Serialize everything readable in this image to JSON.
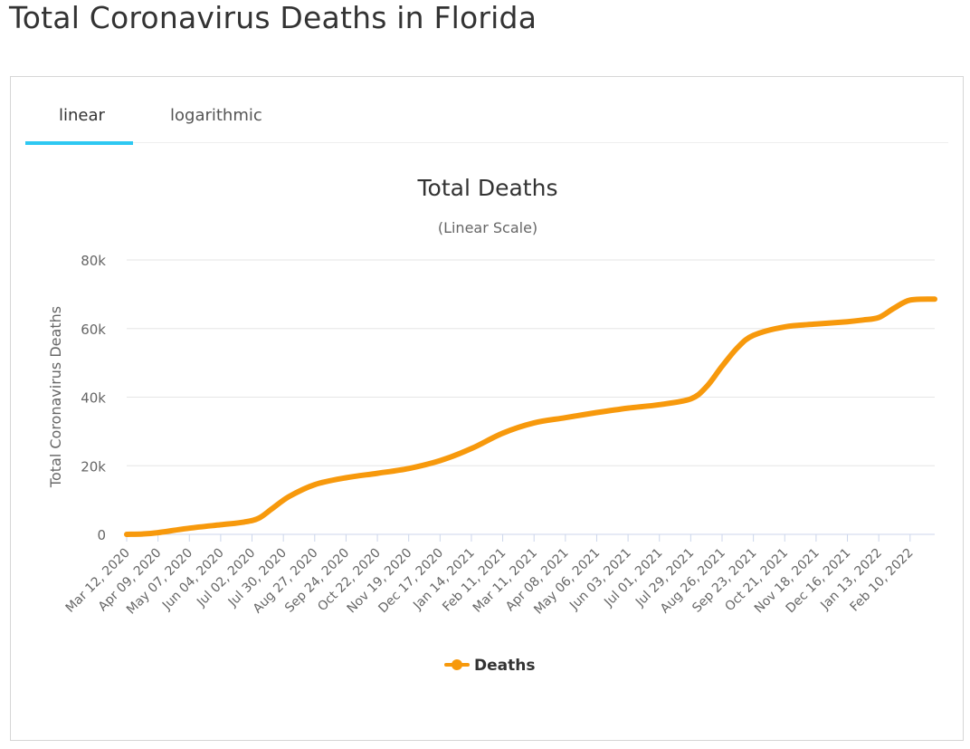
{
  "page": {
    "title": "Total Coronavirus Deaths in Florida"
  },
  "tabs": [
    {
      "label": "linear",
      "active": true
    },
    {
      "label": "logarithmic",
      "active": false
    }
  ],
  "colors": {
    "series": "#f7990c",
    "tab_accent": "#2ec8f2",
    "grid": "#e6e6e6",
    "axis": "#ccd6eb"
  },
  "chart_data": {
    "type": "line",
    "title": "Total Deaths",
    "subtitle": "(Linear Scale)",
    "ylabel": "Total Coronavirus Deaths",
    "xlabel": "",
    "ylim": [
      0,
      80000
    ],
    "y_ticks": [
      {
        "value": 0,
        "label": "0"
      },
      {
        "value": 20000,
        "label": "20k"
      },
      {
        "value": 40000,
        "label": "40k"
      },
      {
        "value": 60000,
        "label": "60k"
      },
      {
        "value": 80000,
        "label": "80k"
      }
    ],
    "x_range_days": [
      0,
      722
    ],
    "x_ticks": [
      {
        "day": 0,
        "label": "Mar 12, 2020"
      },
      {
        "day": 28,
        "label": "Apr 09, 2020"
      },
      {
        "day": 56,
        "label": "May 07, 2020"
      },
      {
        "day": 84,
        "label": "Jun 04, 2020"
      },
      {
        "day": 112,
        "label": "Jul 02, 2020"
      },
      {
        "day": 140,
        "label": "Jul 30, 2020"
      },
      {
        "day": 168,
        "label": "Aug 27, 2020"
      },
      {
        "day": 196,
        "label": "Sep 24, 2020"
      },
      {
        "day": 224,
        "label": "Oct 22, 2020"
      },
      {
        "day": 252,
        "label": "Nov 19, 2020"
      },
      {
        "day": 280,
        "label": "Dec 17, 2020"
      },
      {
        "day": 308,
        "label": "Jan 14, 2021"
      },
      {
        "day": 336,
        "label": "Feb 11, 2021"
      },
      {
        "day": 364,
        "label": "Mar 11, 2021"
      },
      {
        "day": 392,
        "label": "Apr 08, 2021"
      },
      {
        "day": 420,
        "label": "May 06, 2021"
      },
      {
        "day": 448,
        "label": "Jun 03, 2021"
      },
      {
        "day": 476,
        "label": "Jul 01, 2021"
      },
      {
        "day": 504,
        "label": "Jul 29, 2021"
      },
      {
        "day": 532,
        "label": "Aug 26, 2021"
      },
      {
        "day": 560,
        "label": "Sep 23, 2021"
      },
      {
        "day": 588,
        "label": "Oct 21, 2021"
      },
      {
        "day": 616,
        "label": "Nov 18, 2021"
      },
      {
        "day": 644,
        "label": "Dec 16, 2021"
      },
      {
        "day": 672,
        "label": "Jan 13, 2022"
      },
      {
        "day": 700,
        "label": "Feb 10, 2022"
      }
    ],
    "series": [
      {
        "name": "Deaths",
        "points": [
          {
            "day": 0,
            "value": 0
          },
          {
            "day": 14,
            "value": 100
          },
          {
            "day": 28,
            "value": 500
          },
          {
            "day": 56,
            "value": 1800
          },
          {
            "day": 84,
            "value": 2800
          },
          {
            "day": 105,
            "value": 3600
          },
          {
            "day": 118,
            "value": 4700
          },
          {
            "day": 130,
            "value": 7500
          },
          {
            "day": 145,
            "value": 11000
          },
          {
            "day": 168,
            "value": 14500
          },
          {
            "day": 196,
            "value": 16500
          },
          {
            "day": 224,
            "value": 17800
          },
          {
            "day": 252,
            "value": 19200
          },
          {
            "day": 280,
            "value": 21500
          },
          {
            "day": 308,
            "value": 25000
          },
          {
            "day": 336,
            "value": 29500
          },
          {
            "day": 364,
            "value": 32500
          },
          {
            "day": 392,
            "value": 34000
          },
          {
            "day": 420,
            "value": 35500
          },
          {
            "day": 448,
            "value": 36800
          },
          {
            "day": 476,
            "value": 37800
          },
          {
            "day": 504,
            "value": 39500
          },
          {
            "day": 518,
            "value": 43000
          },
          {
            "day": 532,
            "value": 49000
          },
          {
            "day": 546,
            "value": 54500
          },
          {
            "day": 560,
            "value": 58000
          },
          {
            "day": 588,
            "value": 60500
          },
          {
            "day": 616,
            "value": 61300
          },
          {
            "day": 644,
            "value": 62000
          },
          {
            "day": 658,
            "value": 62500
          },
          {
            "day": 672,
            "value": 63200
          },
          {
            "day": 686,
            "value": 66000
          },
          {
            "day": 700,
            "value": 68300
          },
          {
            "day": 722,
            "value": 68600
          }
        ]
      }
    ],
    "legend": {
      "position": "bottom-center",
      "label": "Deaths"
    }
  }
}
